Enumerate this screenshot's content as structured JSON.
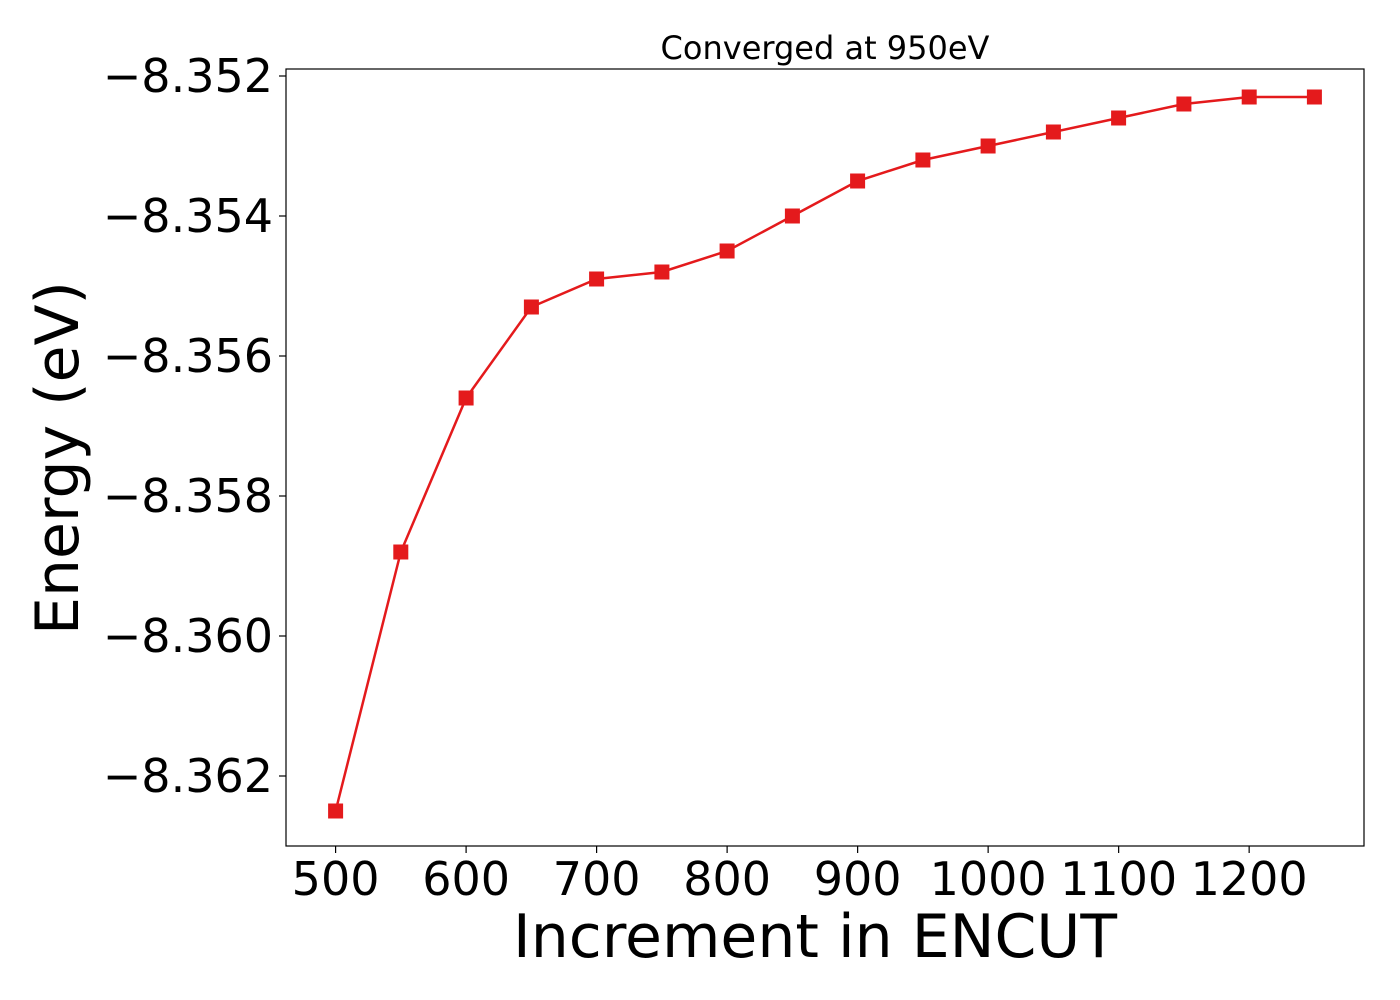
{
  "chart_data": {
    "type": "line",
    "title": "Converged at 950eV",
    "xlabel": "Increment in ENCUT",
    "ylabel": "Energy (eV)",
    "xlim": [
      462,
      1288
    ],
    "ylim": [
      -8.363,
      -8.3519
    ],
    "x_ticks": [
      500,
      600,
      700,
      800,
      900,
      1000,
      1100,
      1200
    ],
    "y_ticks": [
      -8.352,
      -8.354,
      -8.356,
      -8.358,
      -8.36,
      -8.362
    ],
    "y_tick_labels": [
      "−8.352",
      "−8.354",
      "−8.356",
      "−8.358",
      "−8.360",
      "−8.362"
    ],
    "grid": false,
    "marker": "square",
    "color": "#e41a1c",
    "series": [
      {
        "x": [
          500,
          550,
          600,
          650,
          700,
          750,
          800,
          850,
          900,
          950,
          1000,
          1050,
          1100,
          1150,
          1200,
          1250
        ],
        "values": [
          -8.3625,
          -8.3588,
          -8.3566,
          -8.3553,
          -8.3549,
          -8.3548,
          -8.3545,
          -8.354,
          -8.3535,
          -8.3532,
          -8.353,
          -8.3528,
          -8.3526,
          -8.3524,
          -8.3523,
          -8.3523
        ]
      }
    ]
  }
}
